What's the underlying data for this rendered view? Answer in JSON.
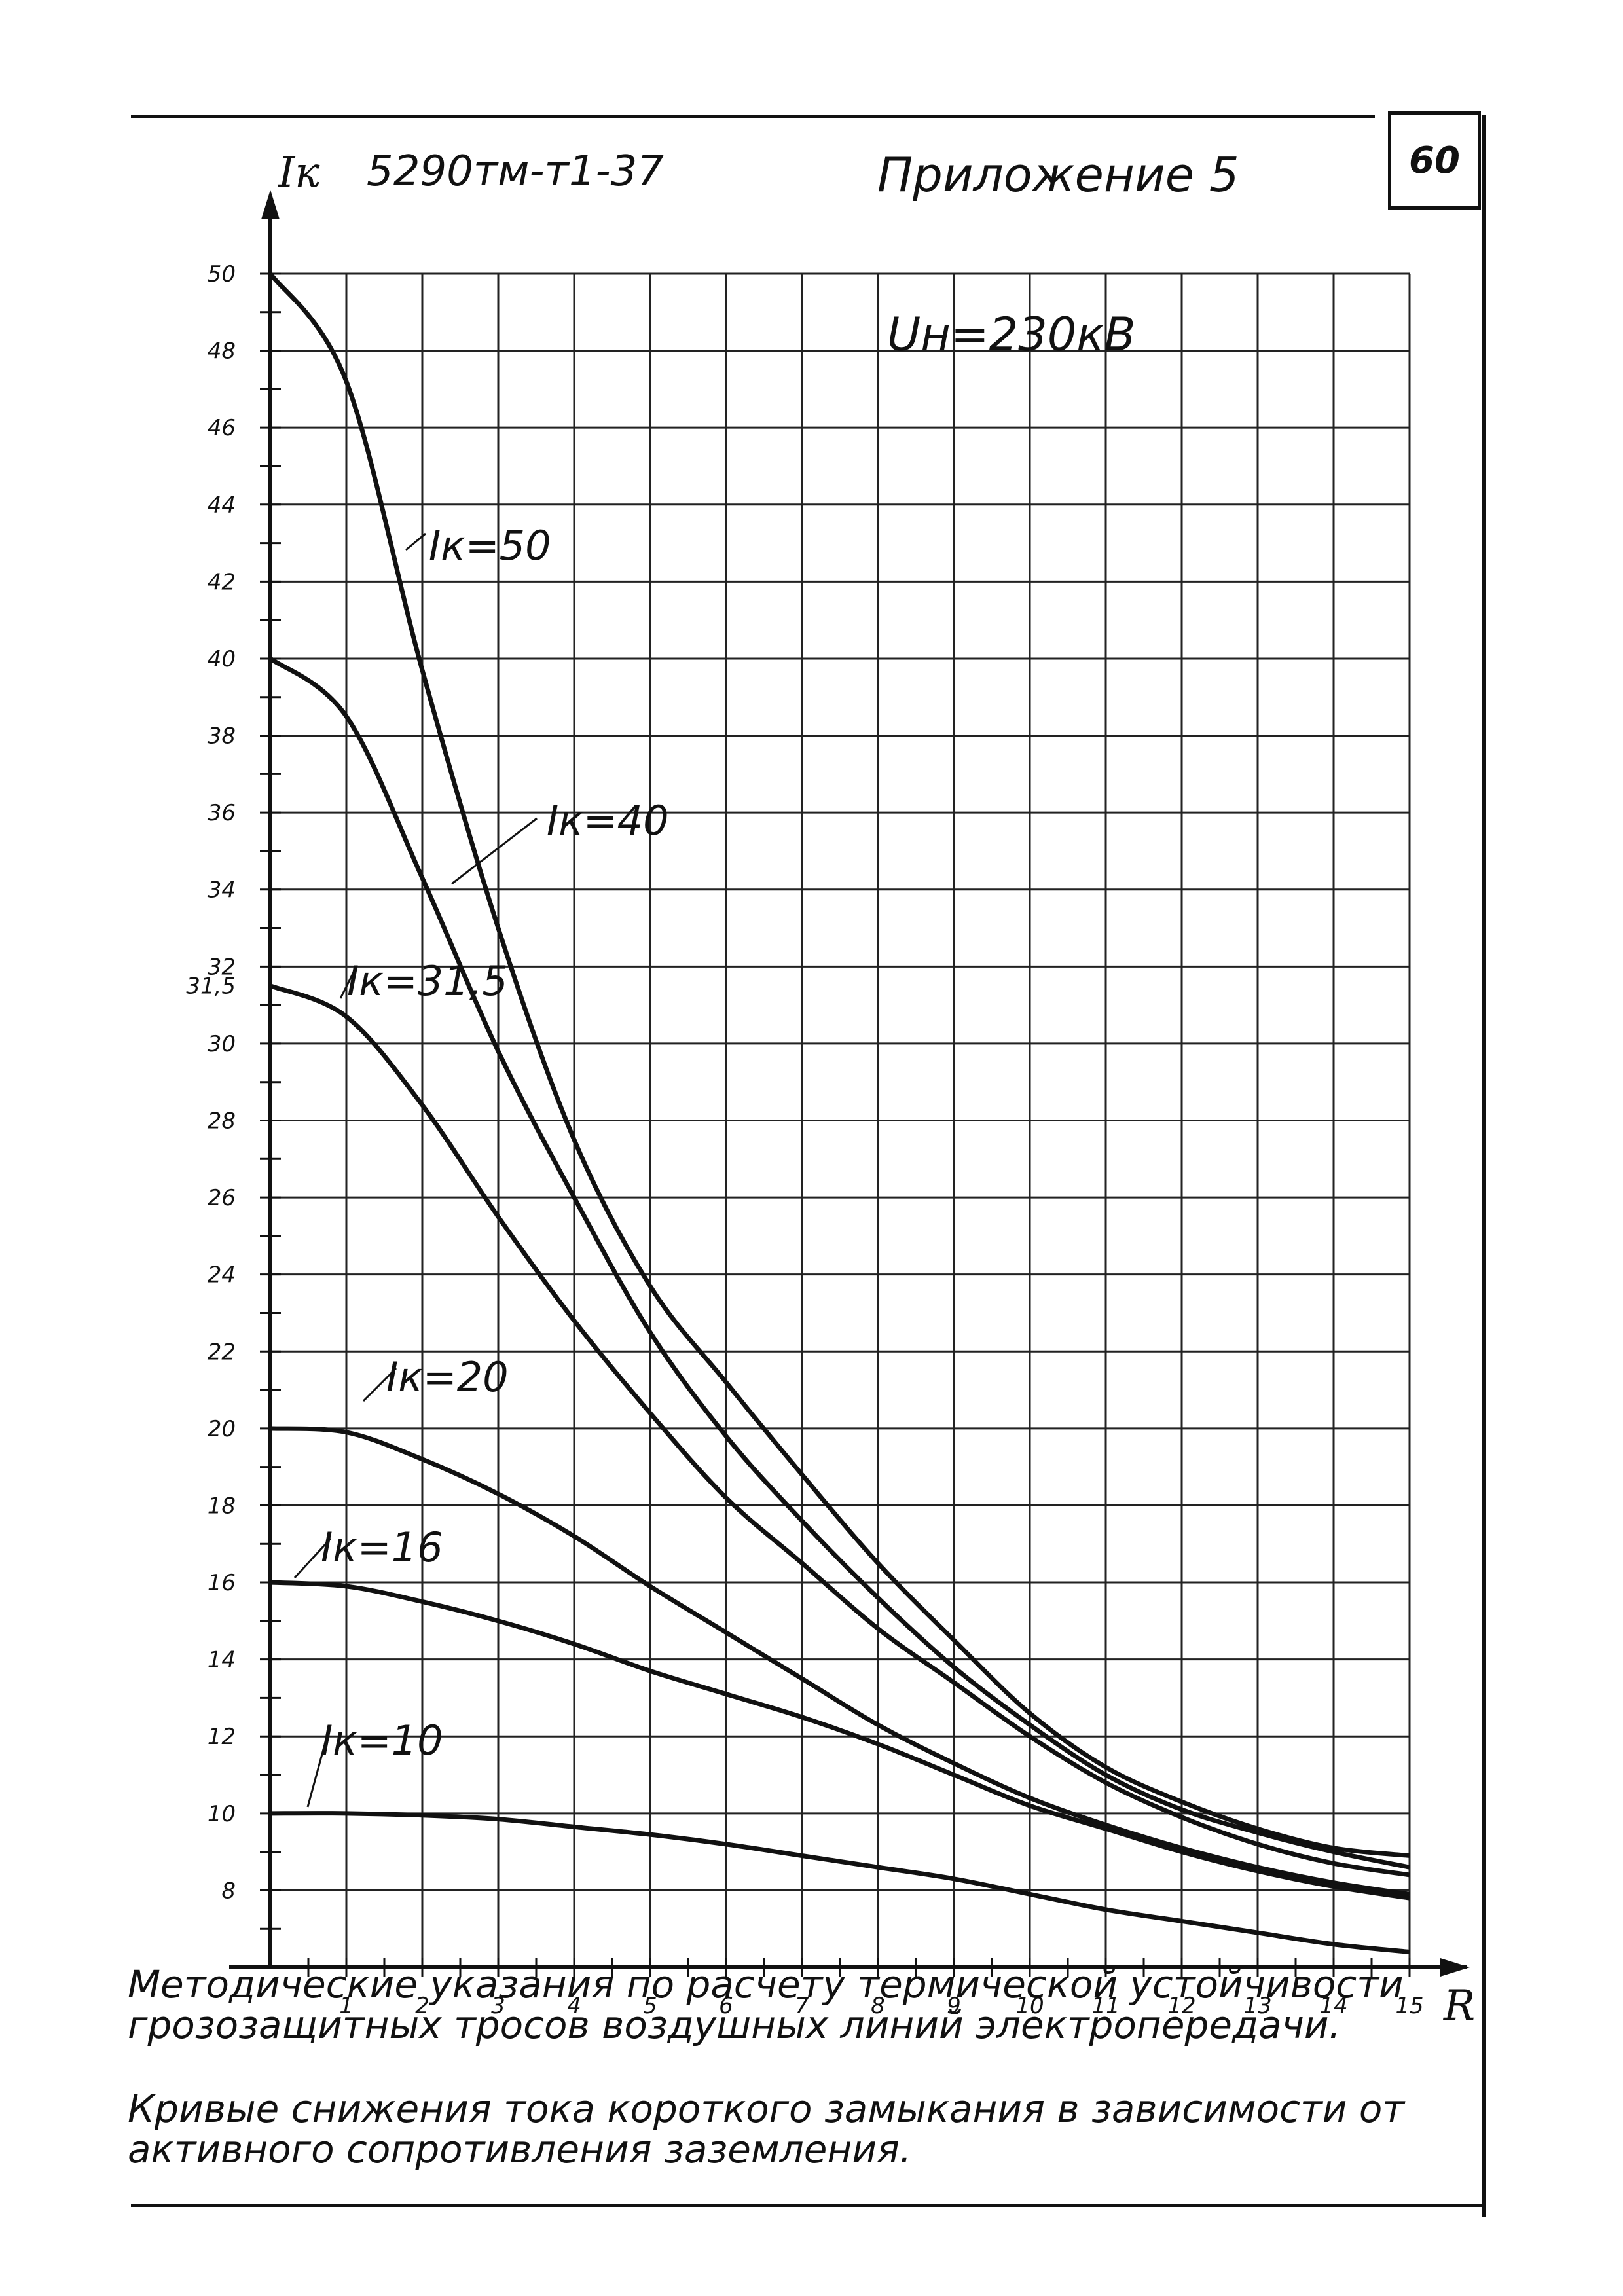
{
  "header": {
    "doc_code": "5290тм-т1-37",
    "appendix": "Приложение 5",
    "page_number": "60"
  },
  "chart_data": {
    "type": "line",
    "title": "",
    "annotation": "Uн=230кВ",
    "xlabel": "R",
    "ylabel": "Iк",
    "xlim": [
      0,
      15
    ],
    "ylim": [
      6,
      50
    ],
    "x_ticks": [
      "1",
      "2",
      "3",
      "4",
      "5",
      "6",
      "7",
      "8",
      "9",
      "10",
      "11",
      "12",
      "13",
      "14",
      "15"
    ],
    "y_ticks": [
      "50",
      "48",
      "46",
      "44",
      "42",
      "40",
      "38",
      "36",
      "34",
      "32",
      "31,5",
      "30",
      "28",
      "26",
      "24",
      "22",
      "20",
      "18",
      "16",
      "14",
      "12",
      "10",
      "8"
    ],
    "grid": true,
    "x": [
      0,
      1,
      2,
      3,
      4,
      5,
      6,
      7,
      8,
      9,
      10,
      11,
      12,
      13,
      14,
      15
    ],
    "series": [
      {
        "name": "Iк=50",
        "values": [
          50,
          47.2,
          39.7,
          33.0,
          27.5,
          23.7,
          21.2,
          18.8,
          16.5,
          14.5,
          12.6,
          11.2,
          10.3,
          9.6,
          9.1,
          8.9
        ]
      },
      {
        "name": "Iк=40",
        "values": [
          40,
          38.5,
          34.3,
          29.8,
          26.0,
          22.5,
          19.8,
          17.6,
          15.6,
          13.8,
          12.3,
          11.0,
          10.1,
          9.5,
          9.0,
          8.6
        ]
      },
      {
        "name": "Iк=31,5",
        "values": [
          31.5,
          30.7,
          28.4,
          25.5,
          22.8,
          20.4,
          18.2,
          16.5,
          14.8,
          13.4,
          12.0,
          10.8,
          9.9,
          9.2,
          8.7,
          8.4
        ]
      },
      {
        "name": "Iк=20",
        "values": [
          20,
          19.9,
          19.2,
          18.3,
          17.2,
          15.9,
          14.7,
          13.5,
          12.3,
          11.3,
          10.4,
          9.7,
          9.1,
          8.6,
          8.2,
          7.9
        ]
      },
      {
        "name": "Iк=16",
        "values": [
          16,
          15.9,
          15.5,
          15.0,
          14.4,
          13.7,
          13.1,
          12.5,
          11.8,
          11.0,
          10.2,
          9.6,
          9.0,
          8.5,
          8.1,
          7.8
        ]
      },
      {
        "name": "Iк=10",
        "values": [
          10,
          10.0,
          9.95,
          9.85,
          9.65,
          9.45,
          9.2,
          8.9,
          8.6,
          8.3,
          7.9,
          7.5,
          7.2,
          6.9,
          6.6,
          6.4
        ]
      }
    ],
    "series_labels": [
      "Iк=50",
      "Iк=40",
      "Iк=31,5",
      "Iк=20",
      "Iк=16",
      "Iк=10"
    ]
  },
  "caption": {
    "line1": "Методические указания по расчету термической устойчивости грозозащитных тросов воздушных линий электропередачи.",
    "line2": "Кривые снижения тока короткого замыкания в зависимости от активного сопротивления заземления."
  }
}
